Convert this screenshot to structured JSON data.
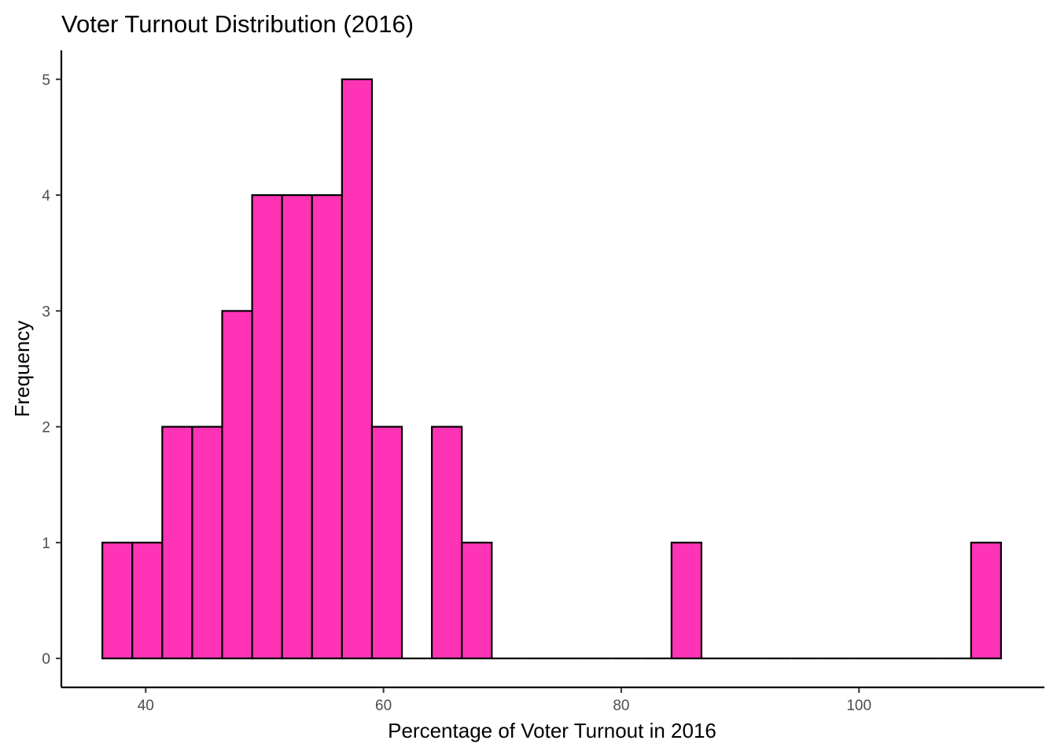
{
  "chart_data": {
    "type": "bar",
    "title": "Voter Turnout Distribution (2016)",
    "xlabel": "Percentage of Voter Turnout in 2016",
    "ylabel": "Frequency",
    "xlim": [
      32.9,
      115.6
    ],
    "ylim": [
      -0.25,
      5.25
    ],
    "x_ticks": [
      40,
      60,
      80,
      100
    ],
    "y_ticks": [
      0,
      1,
      2,
      3,
      4,
      5
    ],
    "bin_width": 2.52,
    "bin_start": 36.35,
    "counts": [
      1,
      1,
      2,
      2,
      3,
      4,
      4,
      4,
      5,
      2,
      0,
      2,
      1,
      0,
      0,
      0,
      0,
      0,
      0,
      1,
      0,
      0,
      0,
      0,
      0,
      0,
      0,
      0,
      0,
      1
    ],
    "bar_color": "#FF33B5",
    "grid": false,
    "legend": "none"
  }
}
